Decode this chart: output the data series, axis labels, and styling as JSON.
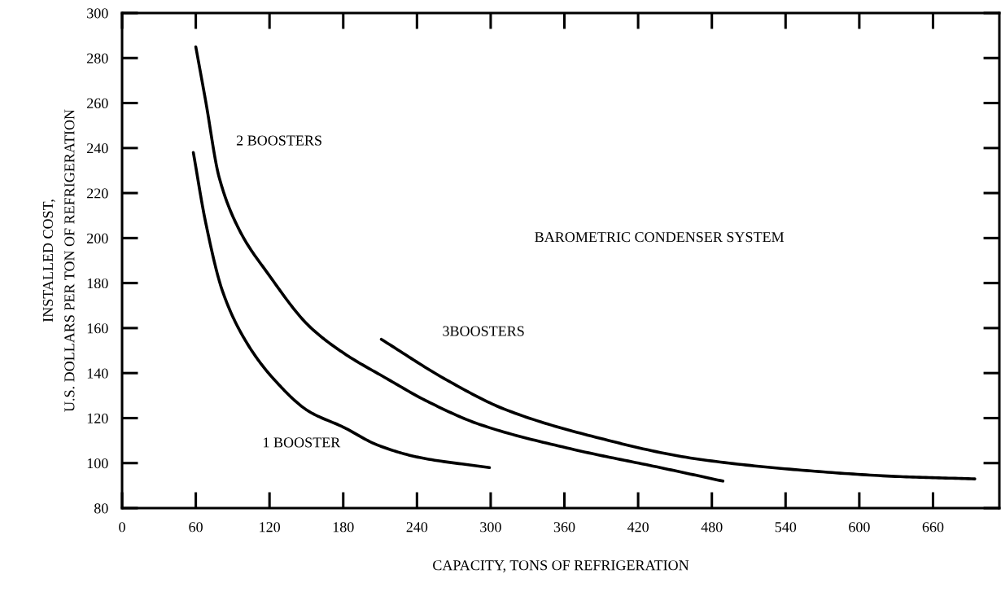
{
  "chart_data": {
    "type": "line",
    "xlabel": "CAPACITY, TONS OF REFRIGERATION",
    "ylabel": "INSTALLED COST,\nU.S. DOLLARS PER TON OF REFRIGERATION",
    "annotations": [
      "BAROMETRIC CONDENSER SYSTEM"
    ],
    "series": [
      {
        "name": "1 BOOSTER",
        "color": "#000000",
        "x": [
          58,
          68,
          82,
          102,
          124,
          152,
          180,
          208,
          242,
          299
        ],
        "values": [
          238,
          207,
          176,
          153,
          137,
          123,
          116,
          108,
          102.5,
          98
        ]
      },
      {
        "name": "2 BOOSTERS",
        "color": "#000000",
        "x": [
          60,
          68,
          79,
          96,
          119,
          152,
          180,
          214,
          250,
          292,
          368,
          438,
          489
        ],
        "values": [
          285,
          261,
          227,
          203,
          184,
          161,
          149,
          138,
          127,
          117,
          106,
          98,
          92
        ]
      },
      {
        "name": "3BOOSTERS",
        "color": "#000000",
        "x": [
          211,
          264,
          311,
          382,
          466,
          550,
          633,
          694
        ],
        "values": [
          155,
          137,
          124,
          112,
          102,
          97,
          94,
          93
        ]
      }
    ],
    "xlim": [
      0,
      714
    ],
    "xticks": [
      0,
      60,
      120,
      180,
      240,
      300,
      360,
      420,
      480,
      540,
      600,
      660
    ],
    "ylim": [
      80,
      300
    ],
    "yticks": [
      80,
      100,
      120,
      140,
      160,
      180,
      200,
      220,
      240,
      260,
      280,
      300
    ],
    "grid": false,
    "legend": false,
    "marker": "none",
    "line_style": "solid"
  }
}
